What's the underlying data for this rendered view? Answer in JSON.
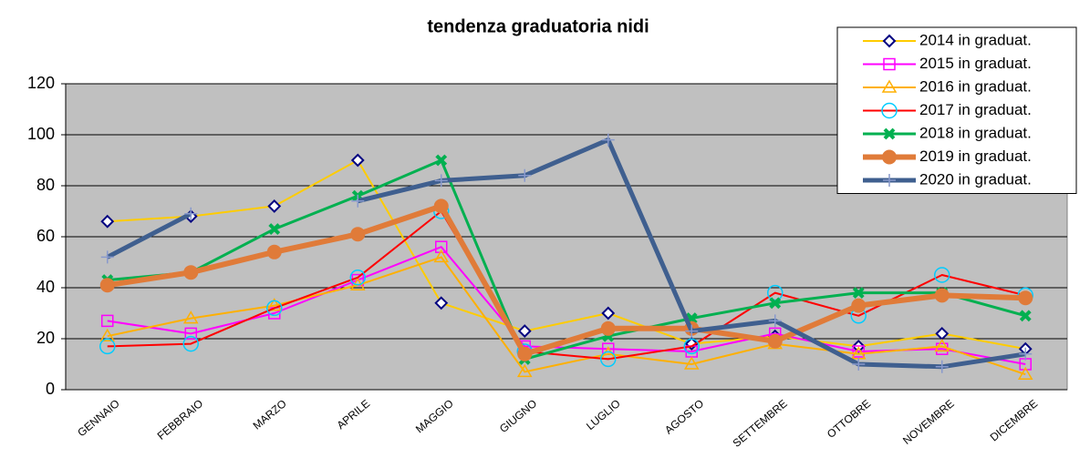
{
  "chart_data": {
    "type": "line",
    "title": "tendenza graduatoria nidi",
    "categories": [
      "GENNAIO",
      "FEBBRAIO",
      "MARZO",
      "APRILE",
      "MAGGIO",
      "GIUGNO",
      "LUGLIO",
      "AGOSTO",
      "SETTEMBRE",
      "OTTOBRE",
      "NOVEMBRE",
      "DICEMBRE"
    ],
    "series": [
      {
        "name": "2014 in graduat.",
        "color": "#FFCC00",
        "marker": "diamond",
        "line_width": 2,
        "values": [
          66,
          68,
          72,
          90,
          34,
          23,
          30,
          18,
          21,
          17,
          22,
          16
        ]
      },
      {
        "name": "2015 in graduat.",
        "color": "#FF00FF",
        "marker": "square",
        "line_width": 2,
        "values": [
          27,
          22,
          30,
          43,
          56,
          17,
          16,
          15,
          22,
          15,
          16,
          10
        ]
      },
      {
        "name": "2016 in graduat.",
        "color": "#FFB000",
        "marker": "triangle",
        "line_width": 2,
        "values": [
          21,
          28,
          33,
          41,
          52,
          7,
          14,
          10,
          18,
          14,
          17,
          6
        ]
      },
      {
        "name": "2017 in graduat.",
        "color": "#FF0000",
        "marker": "circle",
        "line_width": 2,
        "values": [
          17,
          18,
          32,
          44,
          70,
          15,
          12,
          17,
          38,
          29,
          45,
          37
        ]
      },
      {
        "name": "2018 in graduat.",
        "color": "#00B050",
        "marker": "x",
        "line_width": 3,
        "values": [
          43,
          46,
          63,
          76,
          90,
          12,
          21,
          28,
          34,
          38,
          38,
          29
        ]
      },
      {
        "name": "2019 in graduat.",
        "color": "#E07B39",
        "marker": "dot",
        "line_width": 6,
        "values": [
          41,
          46,
          54,
          61,
          72,
          14,
          24,
          24,
          19,
          33,
          37,
          36
        ]
      },
      {
        "name": "2020 in graduat.",
        "color": "#3F5F8F",
        "marker": "plus",
        "line_width": 5,
        "values": [
          52,
          69,
          null,
          74,
          82,
          84,
          98,
          23,
          27,
          10,
          9,
          14
        ]
      }
    ],
    "ylim": [
      0,
      120
    ],
    "yticks": [
      0,
      20,
      40,
      60,
      80,
      100,
      120
    ],
    "grid": true,
    "legend": "top-right"
  }
}
